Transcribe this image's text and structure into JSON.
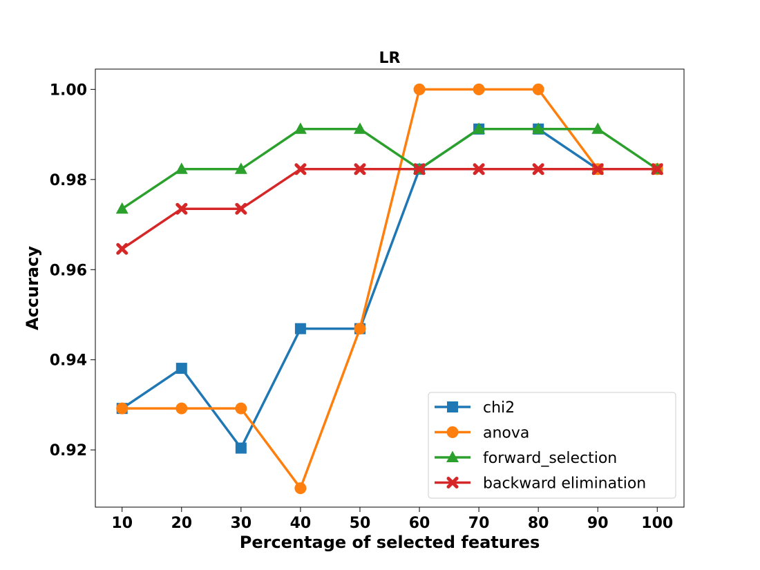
{
  "chart_data": {
    "type": "line",
    "title": "LR",
    "xlabel": "Percentage of selected features",
    "ylabel": "Accuracy",
    "x": [
      10,
      20,
      30,
      40,
      50,
      60,
      70,
      80,
      90,
      100
    ],
    "xlim": [
      5.5,
      104.5
    ],
    "ylim": [
      0.9073,
      1.0045
    ],
    "yticks": [
      0.92,
      0.94,
      0.96,
      0.98,
      1.0
    ],
    "ytick_labels": [
      "0.92",
      "0.94",
      "0.96",
      "0.98",
      "1.00"
    ],
    "xtick_labels": [
      "10",
      "20",
      "30",
      "40",
      "50",
      "60",
      "70",
      "80",
      "90",
      "100"
    ],
    "grid": false,
    "legend_position": "lower-right",
    "series": [
      {
        "name": "chi2",
        "color": "#1f77b4",
        "marker": "square",
        "values": [
          0.9292,
          0.9381,
          0.9204,
          0.9469,
          0.9469,
          0.9823,
          0.9912,
          0.9912,
          0.9823,
          0.9823
        ]
      },
      {
        "name": "anova",
        "color": "#ff7f0e",
        "marker": "circle",
        "values": [
          0.9292,
          0.9292,
          0.9292,
          0.9115,
          0.9469,
          1.0,
          1.0,
          1.0,
          0.9823,
          0.9823
        ]
      },
      {
        "name": "forward_selection",
        "color": "#2ca02c",
        "marker": "triangle",
        "values": [
          0.9735,
          0.9823,
          0.9823,
          0.9912,
          0.9912,
          0.9823,
          0.9912,
          0.9912,
          0.9912,
          0.9823
        ]
      },
      {
        "name": "backward elimination",
        "color": "#d62728",
        "marker": "x",
        "values": [
          0.9646,
          0.9735,
          0.9735,
          0.9823,
          0.9823,
          0.9823,
          0.9823,
          0.9823,
          0.9823,
          0.9823
        ]
      }
    ]
  }
}
